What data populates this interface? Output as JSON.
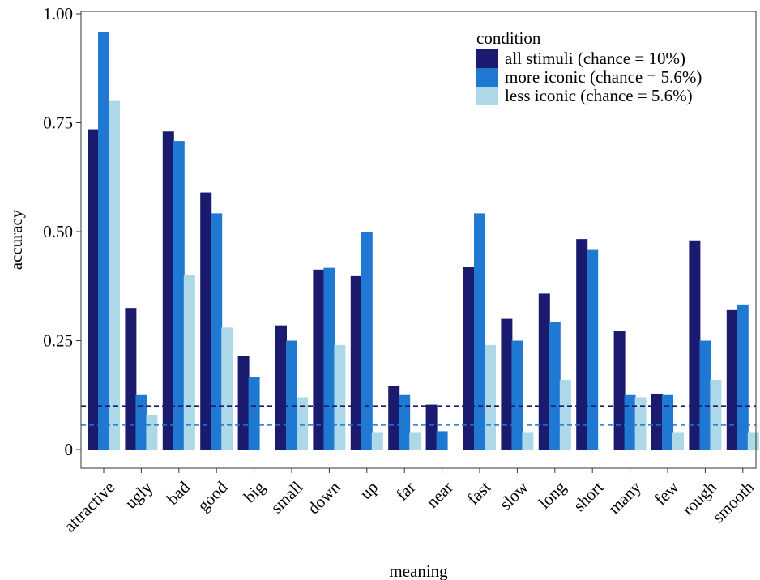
{
  "chart_data": {
    "type": "bar",
    "xlabel": "meaning",
    "ylabel": "accuracy",
    "ylim": [
      0,
      1.0
    ],
    "yticks": [
      0,
      0.25,
      0.5,
      0.75,
      1.0
    ],
    "ytick_labels": [
      "0",
      "0.25",
      "0.50",
      "0.75",
      "1.00"
    ],
    "grid": false,
    "categories": [
      "attractive",
      "ugly",
      "bad",
      "good",
      "big",
      "small",
      "down",
      "up",
      "far",
      "near",
      "fast",
      "slow",
      "long",
      "short",
      "many",
      "few",
      "rough",
      "smooth"
    ],
    "series": [
      {
        "name": "all stimuli (chance = 10%)",
        "color": "#1a1a6e",
        "values": [
          0.735,
          0.325,
          0.73,
          0.59,
          0.215,
          0.285,
          0.413,
          0.398,
          0.145,
          0.103,
          0.42,
          0.3,
          0.358,
          0.483,
          0.272,
          0.128,
          0.48,
          0.32
        ]
      },
      {
        "name": "more iconic (chance = 5.6%)",
        "color": "#1f78d1",
        "values": [
          0.958,
          0.125,
          0.708,
          0.542,
          0.167,
          0.25,
          0.417,
          0.5,
          0.125,
          0.042,
          0.542,
          0.25,
          0.292,
          0.458,
          0.125,
          0.125,
          0.25,
          0.333
        ]
      },
      {
        "name": "less iconic (chance = 5.6%)",
        "color": "#acd8e8",
        "values": [
          0.8,
          0.08,
          0.4,
          0.28,
          0.0,
          0.12,
          0.24,
          0.04,
          0.04,
          0.0,
          0.24,
          0.04,
          0.16,
          0.0,
          0.12,
          0.04,
          0.16,
          0.04
        ]
      }
    ],
    "reference_lines": [
      {
        "y": 0.1,
        "color": "#1a1a6e",
        "style": "dashed"
      },
      {
        "y": 0.056,
        "color": "#1f78d1",
        "style": "dashed"
      }
    ],
    "legend": {
      "title": "condition",
      "placement": "top-right"
    }
  }
}
